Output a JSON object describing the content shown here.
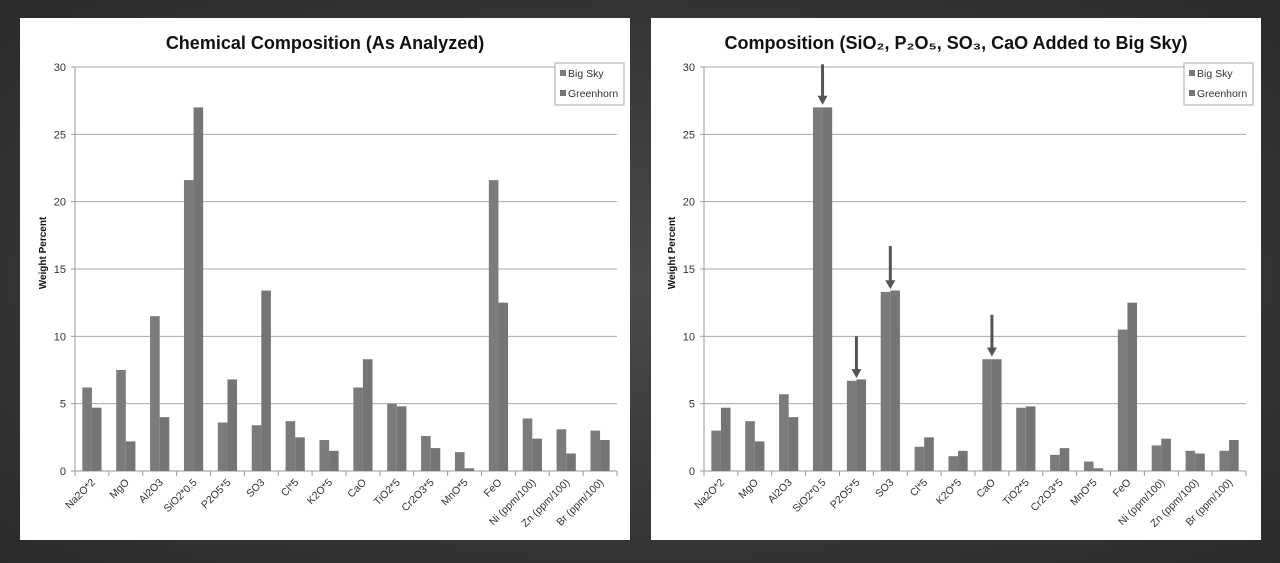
{
  "chart_data": [
    {
      "type": "bar",
      "title": "Chemical Composition (As Analyzed)",
      "xlabel": "",
      "ylabel": "Weight Percent",
      "ylim": [
        0,
        30
      ],
      "yticks": [
        0,
        5,
        10,
        15,
        20,
        25,
        30
      ],
      "grid": true,
      "legend": "top-right",
      "categories": [
        "Na2O*2",
        "MgO",
        "Al2O3",
        "SiO2*0.5",
        "P2O5*5",
        "SO3",
        "Cl*5",
        "K2O*5",
        "CaO",
        "TiO2*5",
        "Cr2O3*5",
        "MnO*5",
        "FeO",
        "Ni (ppm/100)",
        "Zn (ppm/100)",
        "Br (ppm/100)"
      ],
      "series": [
        {
          "name": "Big Sky",
          "color": "#7b7b7b",
          "values": [
            6.2,
            7.5,
            11.5,
            21.6,
            3.6,
            3.4,
            3.7,
            2.3,
            6.2,
            5.0,
            2.6,
            1.4,
            21.6,
            3.9,
            3.1,
            3.0
          ]
        },
        {
          "name": "Greenhorn",
          "color": "#757575",
          "values": [
            4.7,
            2.2,
            4.0,
            27.0,
            6.8,
            13.4,
            2.5,
            1.5,
            8.3,
            4.8,
            1.7,
            0.2,
            12.5,
            2.4,
            1.3,
            2.3
          ]
        }
      ],
      "annotations": []
    },
    {
      "type": "bar",
      "title": "Composition  (SiO₂, P₂O₅, SO₃, CaO Added to Big Sky)",
      "xlabel": "",
      "ylabel": "Weight Percent",
      "ylim": [
        0,
        30
      ],
      "yticks": [
        0,
        5,
        10,
        15,
        20,
        25,
        30
      ],
      "grid": true,
      "legend": "top-right",
      "categories": [
        "Na2O*2",
        "MgO",
        "Al2O3",
        "SiO2*0.5",
        "P2O5*5",
        "SO3",
        "Cl*5",
        "K2O*5",
        "CaO",
        "TiO2*5",
        "Cr2O3*5",
        "MnO*5",
        "FeO",
        "Ni (ppm/100)",
        "Zn (ppm/100)",
        "Br (ppm/100)"
      ],
      "series": [
        {
          "name": "Big Sky",
          "color": "#7b7b7b",
          "values": [
            3.0,
            3.7,
            5.7,
            27.0,
            6.7,
            13.3,
            1.8,
            1.1,
            8.3,
            4.7,
            1.2,
            0.7,
            10.5,
            1.9,
            1.5,
            1.5
          ]
        },
        {
          "name": "Greenhorn",
          "color": "#757575",
          "values": [
            4.7,
            2.2,
            4.0,
            27.0,
            6.8,
            13.4,
            2.5,
            1.5,
            8.3,
            4.8,
            1.7,
            0.2,
            12.5,
            2.4,
            1.3,
            2.3
          ]
        }
      ],
      "annotations": [
        {
          "type": "arrow-down",
          "category": "SiO2*0.5",
          "from": 30.2,
          "to": 27.2
        },
        {
          "type": "arrow-down",
          "category": "P2O5*5",
          "from": 10.0,
          "to": 6.9
        },
        {
          "type": "arrow-down",
          "category": "SO3",
          "from": 16.7,
          "to": 13.5
        },
        {
          "type": "arrow-down",
          "category": "CaO",
          "from": 11.6,
          "to": 8.5
        }
      ]
    }
  ]
}
